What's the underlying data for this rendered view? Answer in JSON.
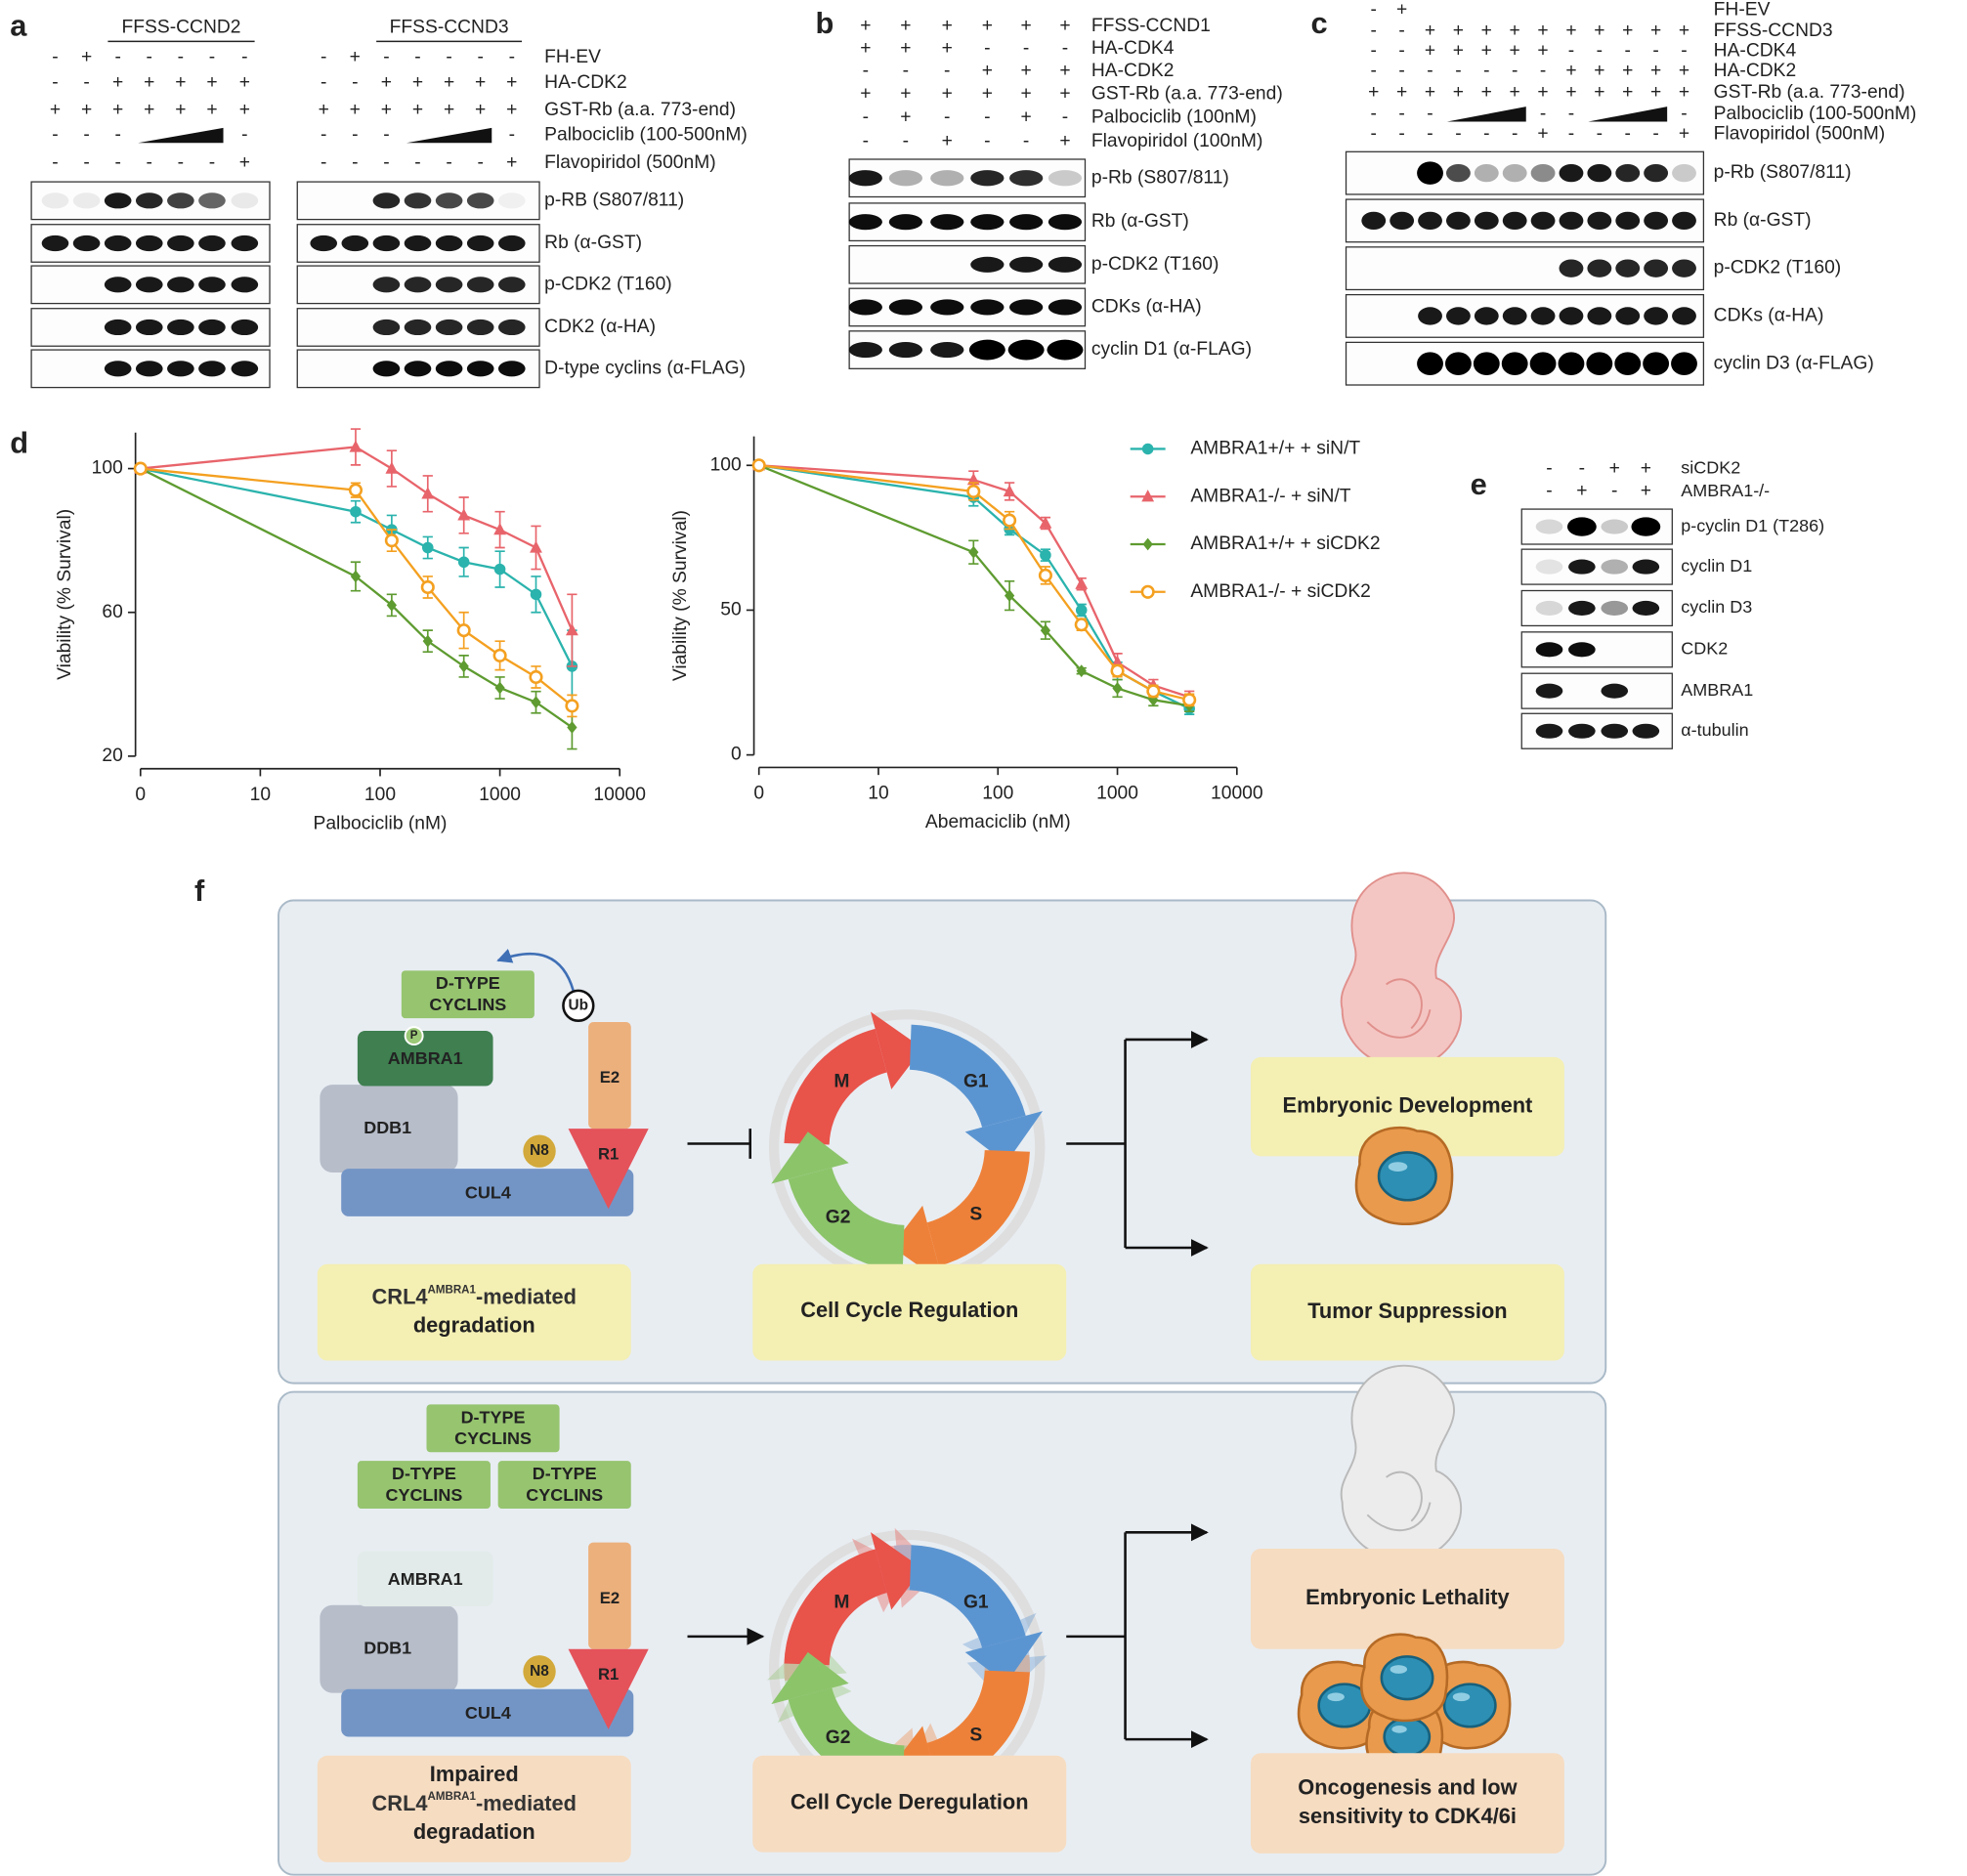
{
  "panel_labels": [
    "a",
    "b",
    "c",
    "d",
    "e",
    "f"
  ],
  "panel_a": {
    "row_labels": [
      "FH-EV",
      "HA-CDK2",
      "GST-Rb (a.a. 773-end)",
      "Palbociclib (100-500nM)",
      "Flavopiridol (500nM)"
    ],
    "band_labels": [
      "p-RB (S807/811)",
      "Rb (α-GST)",
      "p-CDK2 (T160)",
      "CDK2 (α-HA)",
      "D-type cyclins (α-FLAG)"
    ],
    "blots": [
      {
        "header": "FFSS-CCND2",
        "signs": [
          [
            "-",
            "+",
            "-",
            "-",
            "-",
            "-",
            "-"
          ],
          [
            "-",
            "-",
            "+",
            "+",
            "+",
            "+",
            "+"
          ],
          [
            "+",
            "+",
            "+",
            "+",
            "+",
            "+",
            "+"
          ],
          [
            "-",
            "-",
            "-",
            null,
            null,
            null,
            "-"
          ],
          [
            "-",
            "-",
            "-",
            "-",
            "-",
            "-",
            "+"
          ]
        ]
      },
      {
        "header": "FFSS-CCND3",
        "signs": [
          [
            "-",
            "+",
            "-",
            "-",
            "-",
            "-",
            "-"
          ],
          [
            "-",
            "-",
            "+",
            "+",
            "+",
            "+",
            "+"
          ],
          [
            "+",
            "+",
            "+",
            "+",
            "+",
            "+",
            "+"
          ],
          [
            "-",
            "-",
            "-",
            null,
            null,
            null,
            "-"
          ],
          [
            "-",
            "-",
            "-",
            "-",
            "-",
            "-",
            "+"
          ]
        ]
      }
    ]
  },
  "panel_b": {
    "row_labels": [
      "FFSS-CCND1",
      "HA-CDK4",
      "HA-CDK2",
      "GST-Rb (a.a. 773-end)",
      "Palbociclib (100nM)",
      "Flavopiridol (100nM)"
    ],
    "signs": [
      [
        "+",
        "+",
        "+",
        "+",
        "+",
        "+"
      ],
      [
        "+",
        "+",
        "+",
        "-",
        "-",
        "-"
      ],
      [
        "-",
        "-",
        "-",
        "+",
        "+",
        "+"
      ],
      [
        "+",
        "+",
        "+",
        "+",
        "+",
        "+"
      ],
      [
        "-",
        "+",
        "-",
        "-",
        "+",
        "-"
      ],
      [
        "-",
        "-",
        "+",
        "-",
        "-",
        "+"
      ]
    ],
    "band_labels": [
      "p-Rb (S807/811)",
      "Rb (α-GST)",
      "p-CDK2 (T160)",
      "CDKs (α-HA)",
      "cyclin D1 (α-FLAG)"
    ]
  },
  "panel_c": {
    "row_labels": [
      "FH-EV",
      "FFSS-CCND3",
      "HA-CDK4",
      "HA-CDK2",
      "GST-Rb (a.a. 773-end)",
      "Palbociclib (100-500nM)",
      "Flavopiridol (500nM)"
    ],
    "signs": [
      [
        "-",
        "+"
      ],
      [
        "-",
        "-",
        "+",
        "+",
        "+",
        "+",
        "+",
        "+",
        "+",
        "+",
        "+",
        "+"
      ],
      [
        "-",
        "-",
        "+",
        "+",
        "+",
        "+",
        "+",
        "-",
        "-",
        "-",
        "-",
        "-"
      ],
      [
        "-",
        "-",
        "-",
        "-",
        "-",
        "-",
        "-",
        "+",
        "+",
        "+",
        "+",
        "+"
      ],
      [
        "+",
        "+",
        "+",
        "+",
        "+",
        "+",
        "+",
        "+",
        "+",
        "+",
        "+",
        "+"
      ],
      [
        "-",
        "-",
        "-",
        null,
        null,
        null,
        "-",
        "-",
        null,
        null,
        null,
        "-"
      ],
      [
        "-",
        "-",
        "-",
        "-",
        "-",
        "-",
        "+",
        "-",
        "-",
        "-",
        "-",
        "+"
      ]
    ],
    "band_labels": [
      "p-Rb (S807/811)",
      "Rb (α-GST)",
      "p-CDK2 (T160)",
      "CDKs (α-HA)",
      "cyclin D3 (α-FLAG)"
    ]
  },
  "panel_e": {
    "row_labels": [
      "siCDK2",
      "AMBRA1-/-"
    ],
    "signs": [
      [
        "-",
        "-",
        "+",
        "+"
      ],
      [
        "-",
        "+",
        "-",
        "+"
      ]
    ],
    "band_labels": [
      "p-cyclin D1 (T286)",
      "cyclin D1",
      "cyclin D3",
      "CDK2",
      "AMBRA1",
      "α-tubulin"
    ]
  },
  "chart_data": [
    {
      "type": "line",
      "xlabel": "Palbociclib (nM)",
      "ylabel": "Viability (% Survival)",
      "xscale": "log",
      "x": [
        0,
        62.5,
        125,
        250,
        500,
        1000,
        2000,
        4000
      ],
      "xlim": [
        0,
        10000
      ],
      "xticks": [
        0,
        10,
        100,
        1000,
        10000
      ],
      "ylim": [
        20,
        110
      ],
      "yticks": [
        20,
        60,
        100
      ],
      "series": [
        {
          "name": "AMBRA1+/+ + siN/T",
          "color": "#2bb3ad",
          "marker": "circle",
          "values": [
            100,
            88,
            83,
            78,
            74,
            72,
            65,
            45
          ],
          "errors": [
            1,
            3,
            4,
            3,
            4,
            5,
            5,
            10
          ]
        },
        {
          "name": "AMBRA1-/- + siN/T",
          "color": "#e8646b",
          "marker": "triangle",
          "values": [
            100,
            106,
            100,
            93,
            87,
            83,
            78,
            55
          ],
          "errors": [
            1,
            5,
            5,
            5,
            5,
            5,
            6,
            10
          ]
        },
        {
          "name": "AMBRA1+/+ + siCDK2",
          "color": "#5e9b30",
          "marker": "diamond",
          "values": [
            100,
            70,
            62,
            52,
            45,
            39,
            35,
            28
          ],
          "errors": [
            1,
            4,
            3,
            3,
            3,
            3,
            3,
            6
          ]
        },
        {
          "name": "AMBRA1-/- + siCDK2",
          "color": "#f4a020",
          "marker": "open-circle",
          "values": [
            100,
            94,
            80,
            67,
            55,
            48,
            42,
            34
          ],
          "errors": [
            1,
            2,
            3,
            3,
            5,
            4,
            3,
            3
          ]
        }
      ]
    },
    {
      "type": "line",
      "xlabel": "Abemaciclib (nM)",
      "ylabel": "Viability (% Survival)",
      "xscale": "log",
      "legend": "right",
      "x": [
        0,
        62.5,
        125,
        250,
        500,
        1000,
        2000,
        4000
      ],
      "xlim": [
        0,
        10000
      ],
      "xticks": [
        0,
        10,
        100,
        1000,
        10000
      ],
      "ylim": [
        0,
        110
      ],
      "yticks": [
        0,
        50,
        100
      ],
      "series": [
        {
          "name": "AMBRA1+/+ + siN/T",
          "color": "#2bb3ad",
          "marker": "circle",
          "values": [
            100,
            89,
            78,
            69,
            50,
            29,
            22,
            16
          ],
          "errors": [
            1,
            3,
            2,
            2,
            2,
            3,
            2,
            2
          ]
        },
        {
          "name": "AMBRA1-/- + siN/T",
          "color": "#e8646b",
          "marker": "triangle",
          "values": [
            100,
            95,
            91,
            80,
            59,
            32,
            24,
            20
          ],
          "errors": [
            1,
            3,
            3,
            2,
            2,
            3,
            2,
            2
          ]
        },
        {
          "name": "AMBRA1+/+ + siCDK2",
          "color": "#5e9b30",
          "marker": "diamond",
          "values": [
            100,
            70,
            55,
            43,
            29,
            23,
            19,
            17
          ],
          "errors": [
            1,
            4,
            5,
            3,
            1,
            3,
            2,
            2
          ]
        },
        {
          "name": "AMBRA1-/- + siCDK2",
          "color": "#f4a020",
          "marker": "open-circle",
          "values": [
            100,
            91,
            81,
            62,
            45,
            29,
            22,
            19
          ],
          "errors": [
            1,
            3,
            3,
            3,
            2,
            2,
            2,
            2
          ]
        }
      ]
    }
  ],
  "diagram": {
    "normal": {
      "cyclins": [
        [
          "D-TYPE",
          "CYCLINS"
        ]
      ],
      "phospho": "P",
      "ubiquitin": "Ub",
      "ambra1": "AMBRA1",
      "ddb1": "DDB1",
      "cul4": "CUL4",
      "nedd8": "N8",
      "e2": "E2",
      "rbx1": "R1",
      "complex_caption": {
        "pre": "CRL4",
        "sup": "AMBRA1",
        "post": "-mediated",
        "line2": "degradation"
      },
      "phases": [
        "M",
        "G1",
        "S",
        "G2"
      ],
      "cycle_caption": "Cell Cycle Regulation",
      "outcomes": [
        [
          "Embryonic Development"
        ],
        [
          "Tumor Suppression"
        ]
      ]
    },
    "impaired": {
      "cyclins": [
        [
          "D-TYPE",
          "CYCLINS"
        ],
        [
          "D-TYPE",
          "CYCLINS"
        ],
        [
          "D-TYPE",
          "CYCLINS"
        ]
      ],
      "ambra1": "AMBRA1",
      "ddb1": "DDB1",
      "cul4": "CUL4",
      "nedd8": "N8",
      "e2": "E2",
      "rbx1": "R1",
      "complex_caption": {
        "line0": "Impaired",
        "pre": "CRL4",
        "sup": "AMBRA1",
        "post": "-mediated",
        "line2": "degradation"
      },
      "phases": [
        "M",
        "G1",
        "S",
        "G2"
      ],
      "cycle_caption": "Cell Cycle Deregulation",
      "outcomes": [
        [
          "Embryonic Lethality"
        ],
        [
          "Oncogenesis and low",
          "sensitivity to CDK4/6i"
        ]
      ]
    }
  }
}
